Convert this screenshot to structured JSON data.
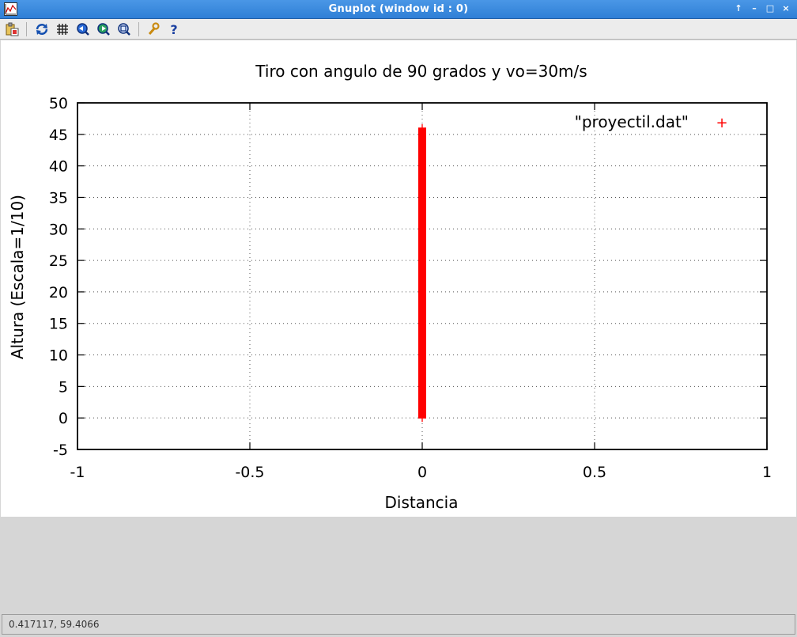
{
  "window": {
    "title": "Gnuplot (window id : 0)",
    "controls": [
      "↑",
      "–",
      "□",
      "×"
    ]
  },
  "toolbar": {
    "buttons": [
      {
        "icon": "copy-clipboard-icon"
      },
      {
        "icon": "replot-icon"
      },
      {
        "icon": "grid-icon"
      },
      {
        "icon": "zoom-previous-icon"
      },
      {
        "icon": "zoom-next-icon"
      },
      {
        "icon": "autoscale-icon"
      },
      {
        "icon": "options-wrench-icon"
      },
      {
        "icon": "help-icon"
      }
    ]
  },
  "status": {
    "coordinates": "0.417117,  59.4066"
  },
  "chart_data": {
    "type": "scatter",
    "title": "Tiro con angulo de 90 grados y vo=30m/s",
    "xlabel": "Distancia",
    "ylabel": "Altura (Escala=1/10)",
    "xlim": [
      -1,
      1
    ],
    "ylim": [
      -5,
      50
    ],
    "xticks": [
      "-1",
      "-0.5",
      "0",
      "0.5",
      "1"
    ],
    "yticks": [
      "50",
      "45",
      "40",
      "35",
      "30",
      "25",
      "20",
      "15",
      "10",
      "5",
      "0",
      "-5"
    ],
    "grid": true,
    "legend": "top-right",
    "series": [
      {
        "name": "\"proyectil.dat\"",
        "marker": "+",
        "color": "#ff0000",
        "x_value": 0,
        "y_min": 0,
        "y_max": 46
      }
    ]
  }
}
